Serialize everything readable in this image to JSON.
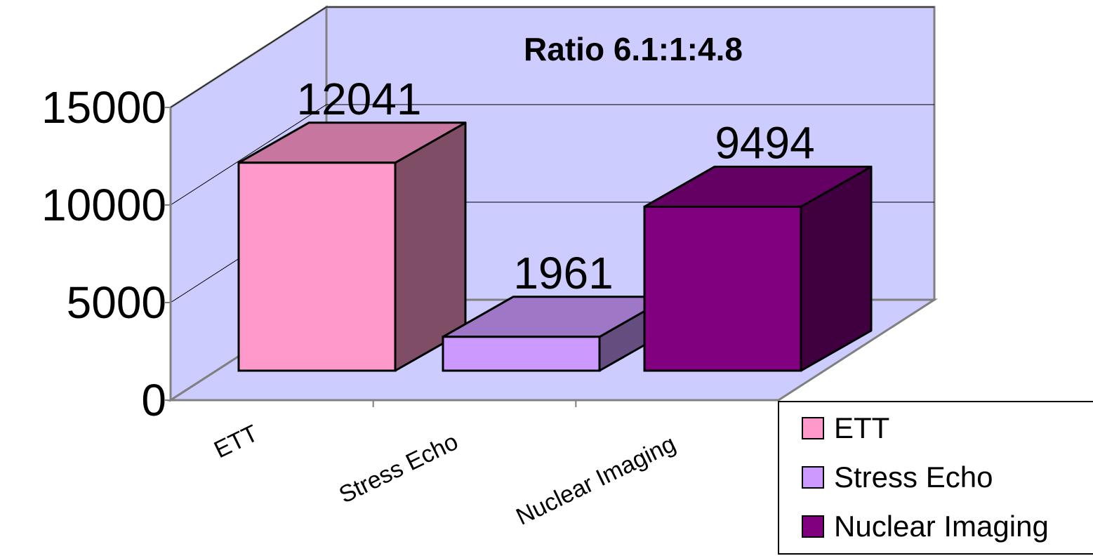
{
  "chart_data": {
    "type": "bar",
    "title": "Ratio 6.1:1:4.8",
    "categories": [
      "ETT",
      "Stress Echo",
      "Nuclear Imaging"
    ],
    "values": [
      12041,
      1961,
      9494
    ],
    "data_labels": [
      "12041",
      "1961",
      "9494"
    ],
    "y_ticks": [
      "0",
      "5000",
      "10000",
      "15000"
    ],
    "ylim": [
      0,
      15000
    ],
    "grid": true,
    "three_d": true,
    "legend_position": "bottom-right",
    "legend": [
      "ETT",
      "Stress Echo",
      "Nuclear Imaging"
    ],
    "colors": {
      "wall": "#ccccff",
      "bars": [
        "#ff99cc",
        "#cc99ff",
        "#800080"
      ],
      "gridline": "#000000",
      "axis": "#808080"
    }
  }
}
